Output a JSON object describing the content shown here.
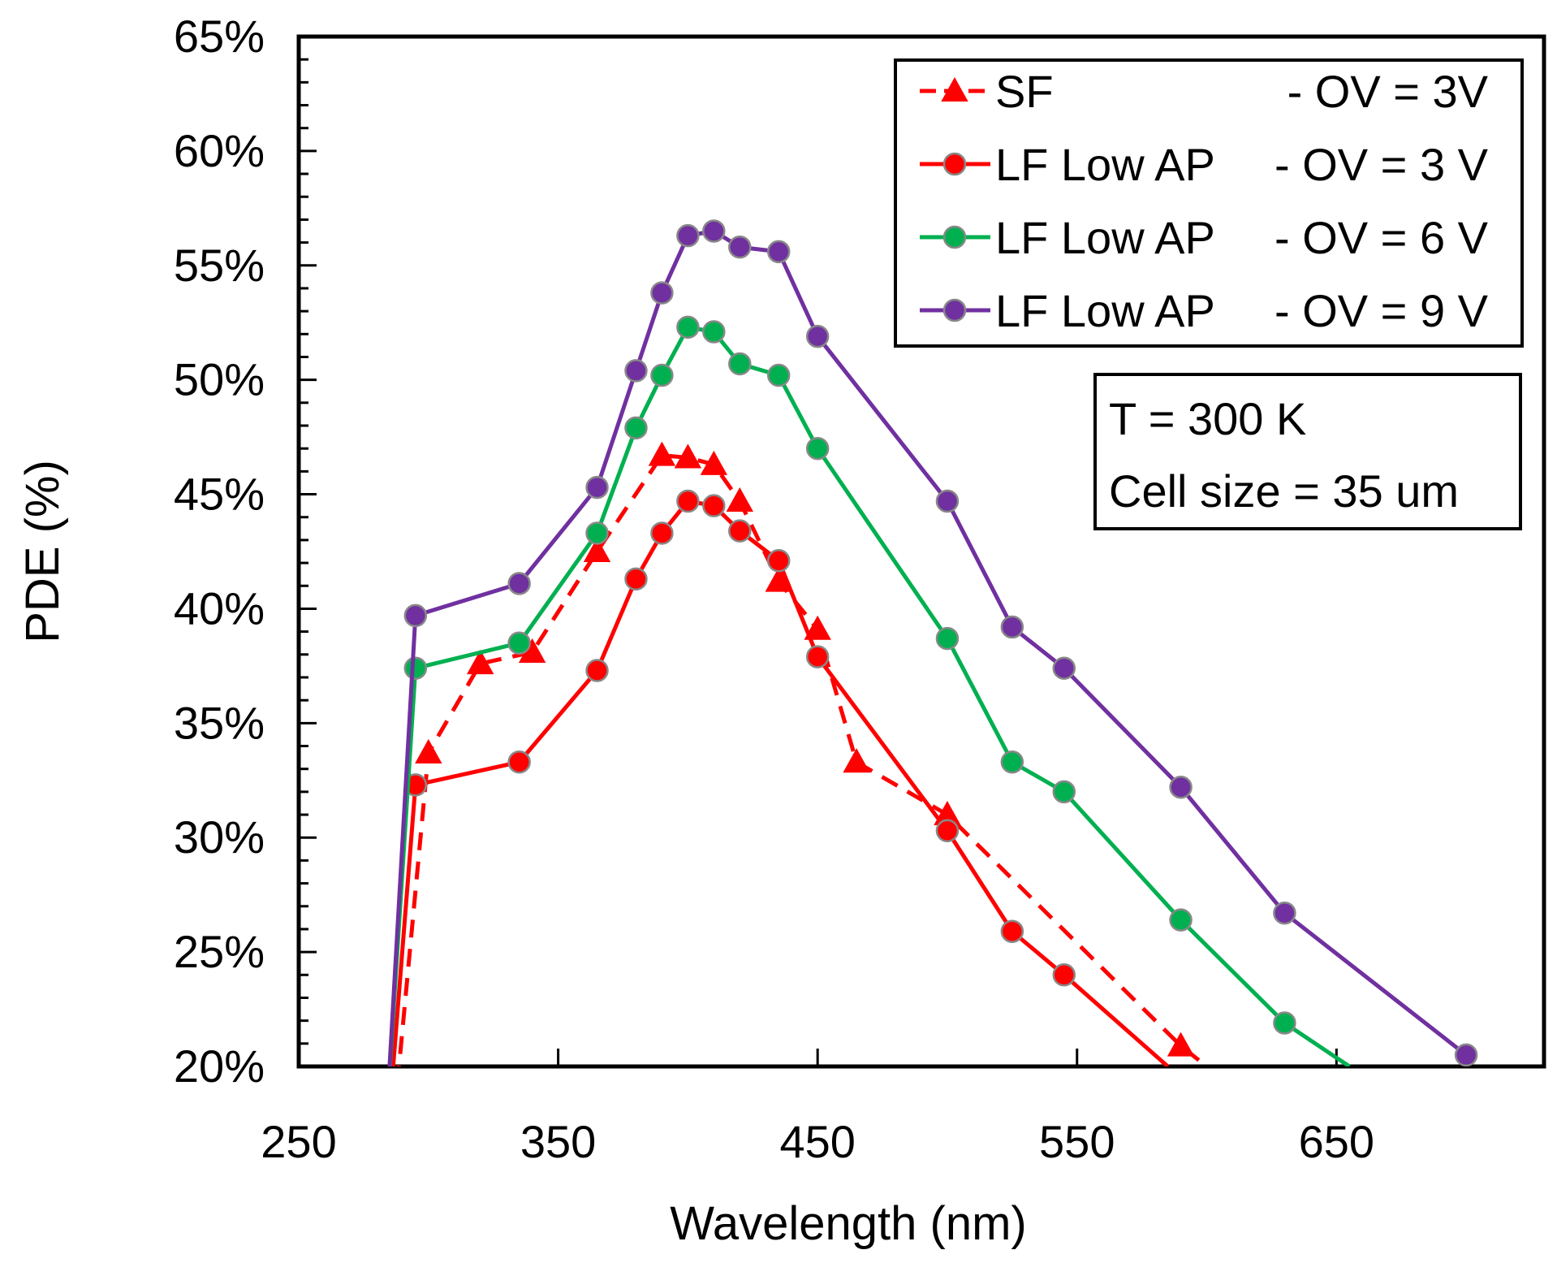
{
  "chart_data": {
    "type": "line",
    "xlabel": "Wavelength (nm)",
    "ylabel": "PDE (%)",
    "xlim": [
      250,
      730
    ],
    "ylim": [
      20,
      65
    ],
    "xticks": [
      250,
      350,
      450,
      550,
      650
    ],
    "yticks": [
      20,
      25,
      30,
      35,
      40,
      45,
      50,
      55,
      60,
      65
    ],
    "ytick_labels": [
      "20%",
      "25%",
      "30%",
      "35%",
      "40%",
      "45%",
      "50%",
      "55%",
      "60%",
      "65%"
    ],
    "legend_position": "top-right",
    "annotation": [
      "T = 300 K",
      "Cell size = 35 um"
    ],
    "series": [
      {
        "name": "SF",
        "legend_suffix": "- OV = 3V",
        "color": "#ff0000",
        "marker": "triangle",
        "dashed": true,
        "x": [
          287,
          300,
          320,
          340,
          365,
          390,
          400,
          410,
          420,
          435,
          450,
          465,
          500,
          590,
          600
        ],
        "y": [
          18,
          33.7,
          37.6,
          38.1,
          42.5,
          46.7,
          46.6,
          46.3,
          44.7,
          41.2,
          39.1,
          33.3,
          31.0,
          20.9,
          20
        ]
      },
      {
        "name": "LF Low AP",
        "legend_suffix": "- OV = 3 V",
        "color": "#ff0000",
        "marker": "circle",
        "dashed": false,
        "x": [
          285,
          295,
          335,
          365,
          380,
          390,
          400,
          410,
          420,
          435,
          450,
          500,
          525,
          545,
          585
        ],
        "y": [
          18,
          32.3,
          33.3,
          37.3,
          41.3,
          43.3,
          44.7,
          44.5,
          43.4,
          42.1,
          37.9,
          30.3,
          25.9,
          24.0,
          20
        ]
      },
      {
        "name": "LF Low AP",
        "legend_suffix": "- OV = 6 V",
        "color": "#00b050",
        "marker": "circle",
        "dashed": false,
        "x": [
          284,
          295,
          335,
          365,
          380,
          390,
          400,
          410,
          420,
          435,
          450,
          500,
          525,
          545,
          590,
          630,
          655
        ],
        "y": [
          18,
          37.4,
          38.5,
          43.3,
          47.9,
          50.2,
          52.3,
          52.1,
          50.7,
          50.2,
          47.0,
          38.7,
          33.3,
          32.0,
          26.4,
          21.9,
          20
        ]
      },
      {
        "name": "LF Low AP",
        "legend_suffix": "- OV = 9 V",
        "color": "#7030a0",
        "marker": "circle",
        "dashed": false,
        "x": [
          284,
          295,
          335,
          365,
          380,
          390,
          400,
          410,
          420,
          435,
          450,
          500,
          525,
          545,
          590,
          630,
          700
        ],
        "y": [
          18,
          39.7,
          41.1,
          45.3,
          50.4,
          53.8,
          56.3,
          56.5,
          55.8,
          55.6,
          51.9,
          44.7,
          39.2,
          37.4,
          32.2,
          26.7,
          20.5
        ]
      }
    ]
  }
}
